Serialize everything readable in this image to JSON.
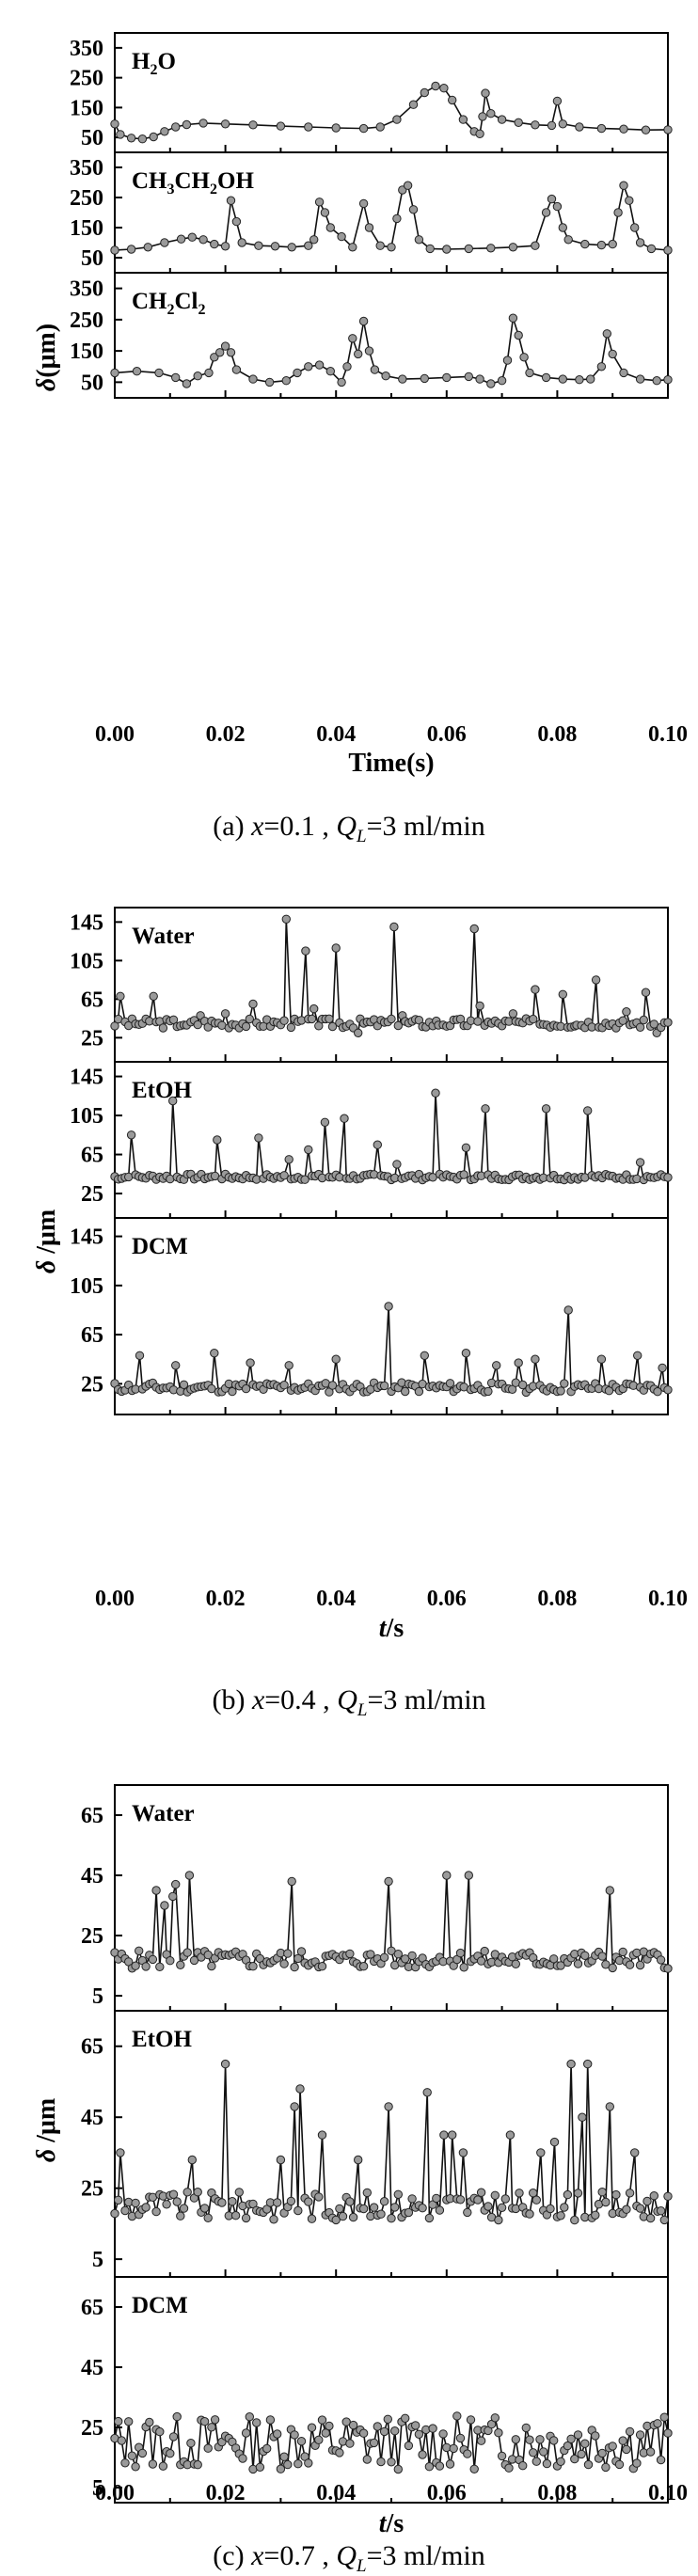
{
  "chart_data": [
    {
      "type": "line",
      "caption": {
        "letter": "(a)",
        "var": "x",
        "xval": "=0.1 , ",
        "q": "Q",
        "qsub": "L",
        "rest": "=3 ml/min"
      },
      "xlabel": "Time(s)",
      "ylabel": "δ(μm)",
      "xlim": [
        0,
        0.1
      ],
      "xticks": [
        "0.00",
        "0.02",
        "0.04",
        "0.06",
        "0.08",
        "0.10"
      ],
      "ylim": [
        0,
        400
      ],
      "yticks": [
        50,
        150,
        250,
        350
      ],
      "panels": [
        {
          "label_parts": [
            [
              "H",
              0
            ],
            [
              "2",
              1
            ],
            [
              "O",
              0
            ]
          ],
          "label": "H2O",
          "points": [
            [
              0,
              95
            ],
            [
              0.001,
              60
            ],
            [
              0.003,
              48
            ],
            [
              0.005,
              45
            ],
            [
              0.007,
              52
            ],
            [
              0.009,
              70
            ],
            [
              0.011,
              85
            ],
            [
              0.013,
              93
            ],
            [
              0.016,
              98
            ],
            [
              0.02,
              95
            ],
            [
              0.025,
              92
            ],
            [
              0.03,
              88
            ],
            [
              0.035,
              85
            ],
            [
              0.04,
              82
            ],
            [
              0.045,
              80
            ],
            [
              0.048,
              85
            ],
            [
              0.051,
              110
            ],
            [
              0.054,
              160
            ],
            [
              0.056,
              200
            ],
            [
              0.058,
              222
            ],
            [
              0.0595,
              215
            ],
            [
              0.061,
              175
            ],
            [
              0.063,
              110
            ],
            [
              0.065,
              70
            ],
            [
              0.066,
              62
            ],
            [
              0.0665,
              120
            ],
            [
              0.067,
              198
            ],
            [
              0.068,
              130
            ],
            [
              0.07,
              110
            ],
            [
              0.073,
              100
            ],
            [
              0.076,
              92
            ],
            [
              0.079,
              90
            ],
            [
              0.08,
              172
            ],
            [
              0.081,
              95
            ],
            [
              0.084,
              85
            ],
            [
              0.088,
              80
            ],
            [
              0.092,
              78
            ],
            [
              0.096,
              75
            ],
            [
              0.1,
              76
            ]
          ]
        },
        {
          "label_parts": [
            [
              "CH",
              0
            ],
            [
              "3",
              1
            ],
            [
              "CH",
              0
            ],
            [
              "2",
              1
            ],
            [
              "OH",
              0
            ]
          ],
          "label": "CH3CH2OH",
          "points": [
            [
              0,
              75
            ],
            [
              0.003,
              78
            ],
            [
              0.006,
              85
            ],
            [
              0.009,
              100
            ],
            [
              0.012,
              112
            ],
            [
              0.014,
              118
            ],
            [
              0.016,
              110
            ],
            [
              0.018,
              95
            ],
            [
              0.02,
              88
            ],
            [
              0.021,
              240
            ],
            [
              0.022,
              170
            ],
            [
              0.023,
              100
            ],
            [
              0.026,
              90
            ],
            [
              0.029,
              88
            ],
            [
              0.032,
              85
            ],
            [
              0.035,
              90
            ],
            [
              0.036,
              110
            ],
            [
              0.037,
              235
            ],
            [
              0.038,
              200
            ],
            [
              0.039,
              150
            ],
            [
              0.041,
              120
            ],
            [
              0.043,
              85
            ],
            [
              0.045,
              230
            ],
            [
              0.046,
              150
            ],
            [
              0.048,
              90
            ],
            [
              0.05,
              85
            ],
            [
              0.051,
              180
            ],
            [
              0.052,
              275
            ],
            [
              0.053,
              290
            ],
            [
              0.054,
              210
            ],
            [
              0.055,
              110
            ],
            [
              0.057,
              80
            ],
            [
              0.06,
              78
            ],
            [
              0.064,
              80
            ],
            [
              0.068,
              82
            ],
            [
              0.072,
              85
            ],
            [
              0.076,
              90
            ],
            [
              0.078,
              200
            ],
            [
              0.079,
              245
            ],
            [
              0.08,
              220
            ],
            [
              0.081,
              150
            ],
            [
              0.082,
              110
            ],
            [
              0.085,
              95
            ],
            [
              0.088,
              92
            ],
            [
              0.09,
              95
            ],
            [
              0.091,
              200
            ],
            [
              0.092,
              290
            ],
            [
              0.093,
              240
            ],
            [
              0.094,
              150
            ],
            [
              0.095,
              100
            ],
            [
              0.097,
              80
            ],
            [
              0.1,
              75
            ]
          ]
        },
        {
          "label_parts": [
            [
              "CH",
              0
            ],
            [
              "2",
              1
            ],
            [
              "Cl",
              0
            ],
            [
              "2",
              1
            ]
          ],
          "label": "CH2Cl2",
          "points": [
            [
              0,
              80
            ],
            [
              0.004,
              85
            ],
            [
              0.008,
              80
            ],
            [
              0.011,
              65
            ],
            [
              0.013,
              45
            ],
            [
              0.015,
              70
            ],
            [
              0.017,
              80
            ],
            [
              0.018,
              130
            ],
            [
              0.019,
              145
            ],
            [
              0.02,
              165
            ],
            [
              0.021,
              145
            ],
            [
              0.022,
              90
            ],
            [
              0.025,
              60
            ],
            [
              0.028,
              50
            ],
            [
              0.031,
              55
            ],
            [
              0.033,
              80
            ],
            [
              0.035,
              100
            ],
            [
              0.037,
              105
            ],
            [
              0.039,
              85
            ],
            [
              0.041,
              50
            ],
            [
              0.042,
              100
            ],
            [
              0.043,
              190
            ],
            [
              0.044,
              140
            ],
            [
              0.045,
              245
            ],
            [
              0.046,
              150
            ],
            [
              0.047,
              90
            ],
            [
              0.049,
              70
            ],
            [
              0.052,
              60
            ],
            [
              0.056,
              62
            ],
            [
              0.06,
              65
            ],
            [
              0.064,
              68
            ],
            [
              0.066,
              60
            ],
            [
              0.068,
              45
            ],
            [
              0.07,
              55
            ],
            [
              0.071,
              120
            ],
            [
              0.072,
              255
            ],
            [
              0.073,
              200
            ],
            [
              0.074,
              130
            ],
            [
              0.075,
              80
            ],
            [
              0.078,
              65
            ],
            [
              0.081,
              60
            ],
            [
              0.084,
              58
            ],
            [
              0.086,
              60
            ],
            [
              0.088,
              100
            ],
            [
              0.089,
              205
            ],
            [
              0.09,
              140
            ],
            [
              0.092,
              80
            ],
            [
              0.095,
              60
            ],
            [
              0.098,
              55
            ],
            [
              0.1,
              58
            ]
          ]
        }
      ]
    },
    {
      "type": "line",
      "caption": {
        "letter": "(b)",
        "var": "x",
        "xval": "=0.4 , ",
        "q": "Q",
        "qsub": "L",
        "rest": "=3 ml/min"
      },
      "xlabel_var": "t",
      "xlabel_unit": "/s",
      "ylabel": "δ /μm",
      "xlim": [
        0,
        0.1
      ],
      "xticks": [
        "0.00",
        "0.02",
        "0.04",
        "0.06",
        "0.08",
        "0.10"
      ],
      "ylim": [
        0,
        160
      ],
      "yticks": [
        25,
        65,
        105,
        145
      ],
      "panels": [
        {
          "label_parts": [
            [
              "Water",
              0
            ]
          ],
          "label": "Water",
          "baseline": 40,
          "noise": 5,
          "seed": 3,
          "spikes": [
            [
              0.001,
              68
            ],
            [
              0.007,
              68
            ],
            [
              0.013,
              38
            ],
            [
              0.0155,
              48
            ],
            [
              0.02,
              50
            ],
            [
              0.025,
              60
            ],
            [
              0.031,
              148
            ],
            [
              0.0345,
              115
            ],
            [
              0.036,
              55
            ],
            [
              0.04,
              118
            ],
            [
              0.044,
              30
            ],
            [
              0.0505,
              140
            ],
            [
              0.052,
              48
            ],
            [
              0.0585,
              38
            ],
            [
              0.065,
              138
            ],
            [
              0.066,
              58
            ],
            [
              0.072,
              50
            ],
            [
              0.076,
              75
            ],
            [
              0.081,
              70
            ],
            [
              0.0835,
              38
            ],
            [
              0.087,
              85
            ],
            [
              0.0925,
              52
            ],
            [
              0.096,
              72
            ],
            [
              0.098,
              30
            ]
          ]
        },
        {
          "label_parts": [
            [
              "EtOH",
              0
            ]
          ],
          "label": "EtOH",
          "baseline": 42,
          "noise": 3,
          "seed": 7,
          "spikes": [
            [
              0.003,
              85
            ],
            [
              0.0105,
              120
            ],
            [
              0.0185,
              80
            ],
            [
              0.026,
              82
            ],
            [
              0.0315,
              60
            ],
            [
              0.035,
              70
            ],
            [
              0.038,
              98
            ],
            [
              0.0415,
              102
            ],
            [
              0.0475,
              75
            ],
            [
              0.051,
              55
            ],
            [
              0.058,
              128
            ],
            [
              0.0635,
              72
            ],
            [
              0.067,
              112
            ],
            [
              0.078,
              112
            ],
            [
              0.0855,
              110
            ],
            [
              0.095,
              57
            ]
          ]
        },
        {
          "label_parts": [
            [
              "DCM",
              0
            ]
          ],
          "label": "DCM",
          "baseline": 22,
          "noise": 4,
          "seed": 11,
          "spikes": [
            [
              0.0045,
              48
            ],
            [
              0.011,
              40
            ],
            [
              0.018,
              50
            ],
            [
              0.0245,
              42
            ],
            [
              0.0315,
              40
            ],
            [
              0.04,
              45
            ],
            [
              0.0495,
              88
            ],
            [
              0.056,
              48
            ],
            [
              0.0635,
              50
            ],
            [
              0.069,
              40
            ],
            [
              0.073,
              42
            ],
            [
              0.076,
              45
            ],
            [
              0.082,
              85
            ],
            [
              0.088,
              45
            ],
            [
              0.0945,
              48
            ],
            [
              0.099,
              38
            ]
          ]
        }
      ]
    },
    {
      "type": "line",
      "caption": {
        "letter": "(c)",
        "var": "x",
        "xval": "=0.7 , ",
        "q": "Q",
        "qsub": "L",
        "rest": "=3 ml/min"
      },
      "xlabel_var": "t",
      "xlabel_unit": "/s",
      "ylabel": "δ /μm",
      "xlim": [
        0,
        0.1
      ],
      "xticks": [
        "0.00",
        "0.02",
        "0.04",
        "0.06",
        "0.08",
        "0.10"
      ],
      "ylim": [
        0,
        75
      ],
      "yticks": [
        5,
        25,
        45,
        65
      ],
      "panels": [
        {
          "label_parts": [
            [
              "Water",
              0
            ]
          ],
          "label": "Water",
          "baseline": 17,
          "noise": 3,
          "seed": 5,
          "spikes": [
            [
              0.0075,
              40
            ],
            [
              0.009,
              35
            ],
            [
              0.0105,
              38
            ],
            [
              0.011,
              42
            ],
            [
              0.0135,
              45
            ],
            [
              0.032,
              43
            ],
            [
              0.0495,
              43
            ],
            [
              0.06,
              45
            ],
            [
              0.064,
              45
            ],
            [
              0.0895,
              40
            ]
          ]
        },
        {
          "label_parts": [
            [
              "EtOH",
              0
            ]
          ],
          "label": "EtOH",
          "baseline": 20,
          "noise": 4,
          "seed": 9,
          "spikes": [
            [
              0.001,
              35
            ],
            [
              0.014,
              33
            ],
            [
              0.02,
              60
            ],
            [
              0.03,
              33
            ],
            [
              0.0325,
              48
            ],
            [
              0.0335,
              53
            ],
            [
              0.0375,
              40
            ],
            [
              0.044,
              33
            ],
            [
              0.0495,
              48
            ],
            [
              0.0565,
              52
            ],
            [
              0.0595,
              40
            ],
            [
              0.061,
              40
            ],
            [
              0.063,
              35
            ],
            [
              0.0715,
              40
            ],
            [
              0.077,
              35
            ],
            [
              0.0795,
              38
            ],
            [
              0.0825,
              60
            ],
            [
              0.0845,
              45
            ],
            [
              0.0855,
              60
            ],
            [
              0.0895,
              48
            ],
            [
              0.094,
              35
            ]
          ]
        },
        {
          "label_parts": [
            [
              "DCM",
              0
            ]
          ],
          "label": "DCM",
          "baseline": 20,
          "noise": 9,
          "seed": 13,
          "spikes": []
        }
      ]
    }
  ]
}
